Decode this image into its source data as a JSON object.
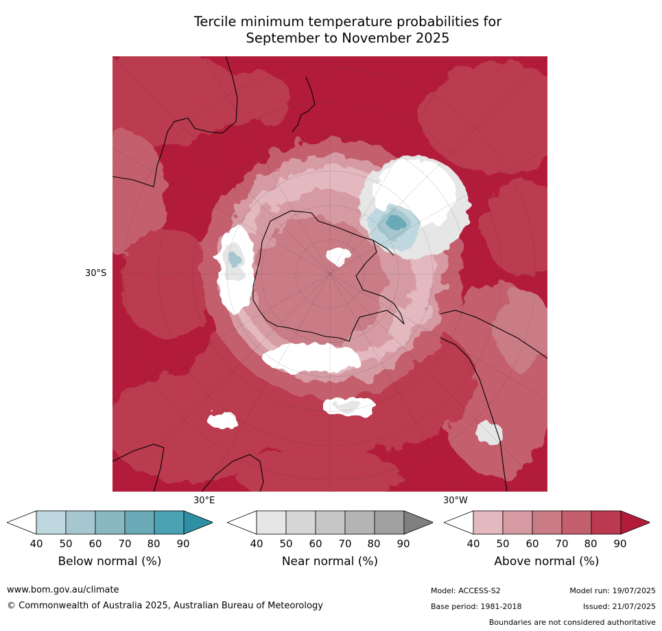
{
  "title_line1": "Tercile minimum temperature probabilities for",
  "title_line2": "September to November 2025",
  "map": {
    "latitude_label": "30°S",
    "longitude_labels": [
      "30°E",
      "30°W"
    ]
  },
  "colorbars": [
    {
      "title": "Below normal (%)",
      "ticks": [
        "40",
        "50",
        "60",
        "70",
        "80",
        "90"
      ],
      "colors": [
        "#ffffff",
        "#bfd7de",
        "#a6c7cf",
        "#8ab8c1",
        "#6aa9b6",
        "#4aa2b2",
        "#2f8fa3"
      ]
    },
    {
      "title": "Near normal (%)",
      "ticks": [
        "40",
        "50",
        "60",
        "70",
        "80",
        "90"
      ],
      "colors": [
        "#ffffff",
        "#e6e6e6",
        "#d6d6d6",
        "#c6c6c6",
        "#b4b4b4",
        "#a0a0a0",
        "#808080"
      ]
    },
    {
      "title": "Above normal (%)",
      "ticks": [
        "40",
        "50",
        "60",
        "70",
        "80",
        "90"
      ],
      "colors": [
        "#ffffff",
        "#e3b8bf",
        "#d69aa3",
        "#c97b86",
        "#c45f6d",
        "#bb3a4f",
        "#b21c3a"
      ]
    }
  ],
  "footer": {
    "website": "www.bom.gov.au/climate",
    "copyright": "© Commonwealth of Australia 2025, Australian Bureau of Meteorology",
    "model": "Model: ACCESS-S2",
    "model_run": "Model run: 19/07/2025",
    "base_period": "Base period: 1981-2018",
    "issued": "Issued: 21/07/2025",
    "disclaimer": "Boundaries are not considered authoritative"
  }
}
